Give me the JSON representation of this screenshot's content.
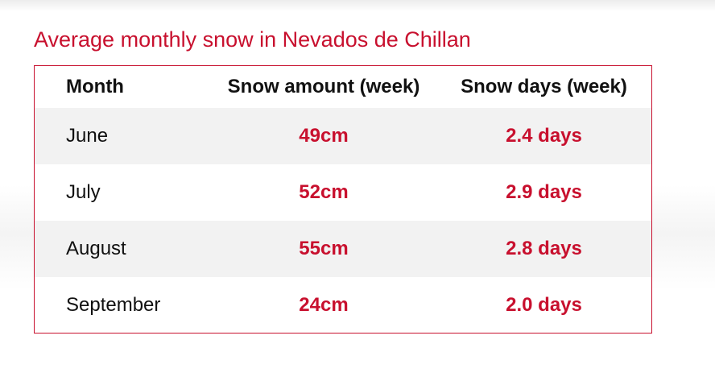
{
  "title": "Average monthly snow in Nevados de Chillan",
  "table": {
    "header": [
      "Month",
      "Snow amount (week)",
      "Snow days (week)"
    ],
    "rows": [
      [
        "June",
        "49cm",
        "2.4 days"
      ],
      [
        "July",
        "52cm",
        "2.9 days"
      ],
      [
        "August",
        "55cm",
        "2.8 days"
      ],
      [
        "September",
        "24cm",
        "2.0 days"
      ]
    ]
  }
}
